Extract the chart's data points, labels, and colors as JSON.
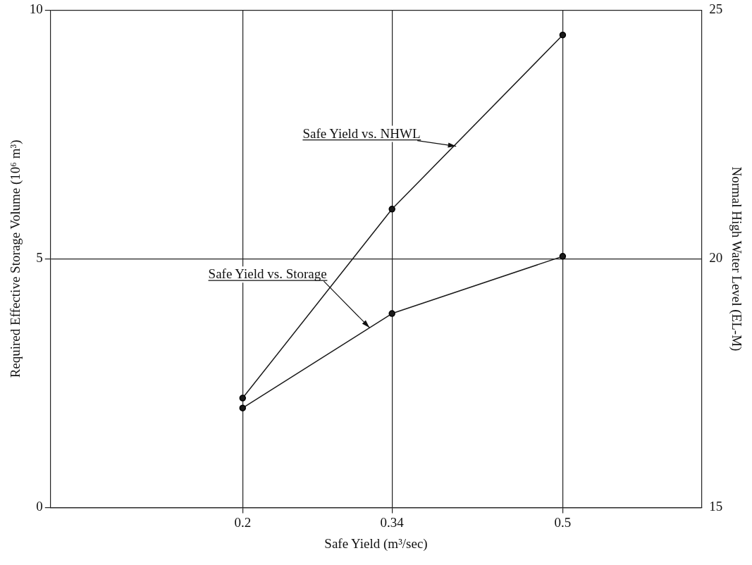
{
  "chart_data": {
    "type": "line",
    "xlabel": "Safe Yield (m³/sec)",
    "ylabel": "Required Effective Storage Volume (10⁶ m³)",
    "y2label": "Normal High Water Level (EL-M)",
    "x": [
      0.2,
      0.34,
      0.5
    ],
    "series": [
      {
        "name": "Safe Yield vs. NHWL",
        "color": "#1a1a1a",
        "values": [
          17.2,
          21.0,
          24.5
        ],
        "axis": "y2"
      },
      {
        "name": "Safe Yield vs. Storage",
        "color": "#1a1a1a",
        "values": [
          2.0,
          3.9,
          5.05
        ]
      }
    ],
    "xlim": [
      0.02,
      0.63
    ],
    "xticks": [
      0.2,
      0.34,
      0.5
    ],
    "ylim": [
      0,
      10
    ],
    "yticks": [
      0,
      5,
      10
    ],
    "y2lim": [
      15,
      25
    ],
    "y2ticks": [
      15,
      20,
      25
    ],
    "grid": true,
    "marker": "circle",
    "line_style": "solid",
    "legend": false
  }
}
